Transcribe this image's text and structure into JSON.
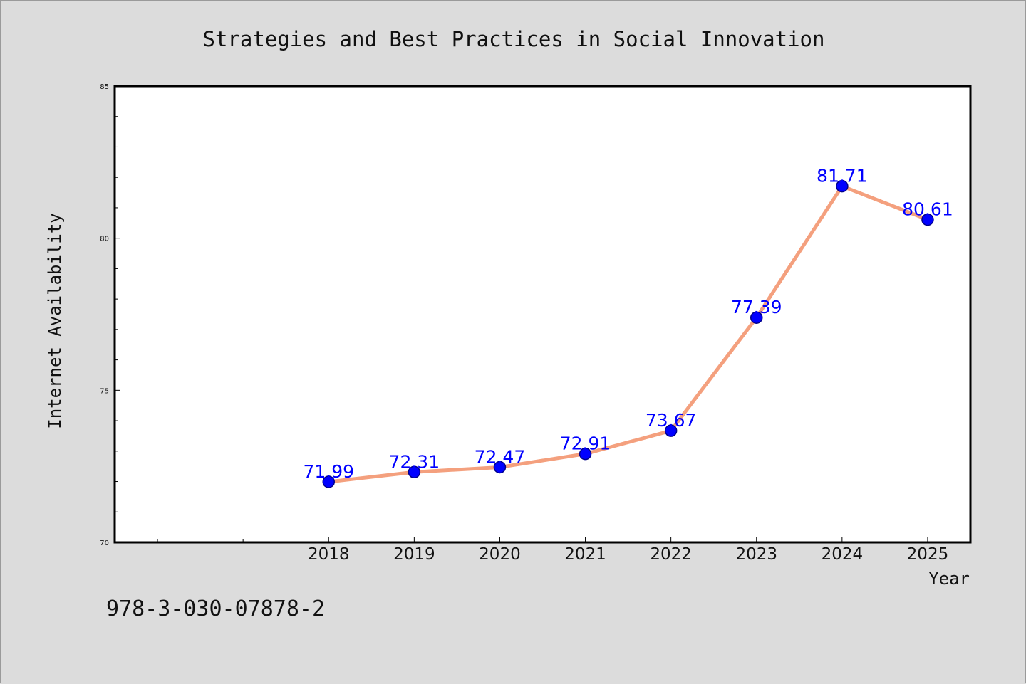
{
  "chart_data": {
    "type": "line",
    "title": "Strategies and Best Practices in Social Innovation",
    "xlabel": "Year",
    "ylabel": "Internet Availability",
    "categories": [
      "2018",
      "2019",
      "2020",
      "2021",
      "2022",
      "2023",
      "2024",
      "2025"
    ],
    "series": [
      {
        "values": [
          71.99,
          72.31,
          72.47,
          72.91,
          73.67,
          77.39,
          81.71,
          80.61
        ],
        "data_labels": [
          "71.99",
          "72.31",
          "72.47",
          "72.91",
          "73.67",
          "77.39",
          "81.71",
          "80.61"
        ]
      }
    ],
    "ylim": [
      70,
      85
    ],
    "y_ticks": [
      "70",
      "75",
      "80",
      "85"
    ],
    "x_range": [
      "2015.5",
      "2025.5"
    ],
    "grid": false,
    "legend": "none",
    "colors": {
      "line": "#f4a07e",
      "marker": "#0000ff",
      "marker_edge": "#00008b",
      "label": "#0000ff",
      "plot_background": "#ffffff",
      "figure_background": "#dcdcdc"
    }
  },
  "footer": {
    "isbn": "978-3-030-07878-2"
  }
}
